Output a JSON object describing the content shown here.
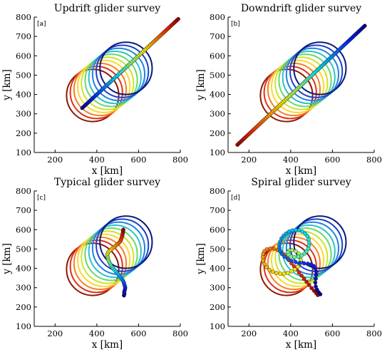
{
  "chart_data": [
    {
      "type": "scatter",
      "panel_label": "[a]",
      "title": "Updrift glider survey",
      "xlabel": "x [km]",
      "ylabel": "y [km]",
      "xlim": [
        100,
        800
      ],
      "ylim": [
        100,
        800
      ],
      "xticks": [
        200,
        400,
        600,
        800
      ],
      "yticks": [
        100,
        200,
        300,
        400,
        500,
        600,
        700,
        800
      ],
      "grid": false,
      "eddy_ellipses": {
        "count": 10,
        "center_start": [
          380,
          395
        ],
        "center_end": [
          540,
          535
        ],
        "semi_axes_km": [
          125,
          135
        ],
        "colormap": [
          "#8B1A00",
          "#E0301E",
          "#F58220",
          "#FFD52E",
          "#C8E52C",
          "#6ED56A",
          "#2CC2C8",
          "#1E82E0",
          "#1F3FD0",
          "#0A1A7A"
        ]
      },
      "glider_track": {
        "start": [
          330,
          330
        ],
        "end": [
          790,
          790
        ],
        "n_points": 70,
        "color_from": "#00008F",
        "color_to": "#B00000"
      }
    },
    {
      "type": "scatter",
      "panel_label": "[b]",
      "title": "Downdrift glider survey",
      "xlabel": "x [km]",
      "ylabel": "y [km]",
      "xlim": [
        100,
        800
      ],
      "ylim": [
        100,
        800
      ],
      "xticks": [
        200,
        400,
        600,
        800
      ],
      "yticks": [
        100,
        200,
        300,
        400,
        500,
        600,
        700,
        800
      ],
      "grid": false,
      "eddy_ellipses": {
        "count": 10,
        "center_start": [
          380,
          395
        ],
        "center_end": [
          540,
          535
        ],
        "semi_axes_km": [
          125,
          135
        ],
        "colormap": [
          "#8B1A00",
          "#E0301E",
          "#F58220",
          "#FFD52E",
          "#C8E52C",
          "#6ED56A",
          "#2CC2C8",
          "#1E82E0",
          "#1F3FD0",
          "#0A1A7A"
        ]
      },
      "glider_track": {
        "start": [
          145,
          140
        ],
        "end": [
          755,
          755
        ],
        "n_points": 90,
        "color_from": "#B00000",
        "color_to": "#00008F"
      }
    },
    {
      "type": "scatter",
      "panel_label": "[c]",
      "title": "Typical glider survey",
      "xlabel": "x [km]",
      "ylabel": "y [km]",
      "xlim": [
        100,
        800
      ],
      "ylim": [
        100,
        800
      ],
      "xticks": [
        200,
        400,
        600,
        800
      ],
      "yticks": [
        100,
        200,
        300,
        400,
        500,
        600,
        700,
        800
      ],
      "grid": false,
      "eddy_ellipses": {
        "count": 10,
        "center_start": [
          380,
          395
        ],
        "center_end": [
          540,
          535
        ],
        "semi_axes_km": [
          125,
          135
        ],
        "colormap": [
          "#8B1A00",
          "#E0301E",
          "#F58220",
          "#FFD52E",
          "#C8E52C",
          "#6ED56A",
          "#2CC2C8",
          "#1E82E0",
          "#1F3FD0",
          "#0A1A7A"
        ]
      },
      "glider_track": {
        "points": [
          [
            530,
            260
          ],
          [
            532,
            268
          ],
          [
            531,
            276
          ],
          [
            533,
            284
          ],
          [
            535,
            292
          ],
          [
            536,
            300
          ],
          [
            534,
            308
          ],
          [
            532,
            316
          ],
          [
            530,
            324
          ],
          [
            527,
            332
          ],
          [
            523,
            340
          ],
          [
            518,
            348
          ],
          [
            512,
            356
          ],
          [
            506,
            364
          ],
          [
            500,
            372
          ],
          [
            494,
            380
          ],
          [
            488,
            388
          ],
          [
            481,
            396
          ],
          [
            475,
            404
          ],
          [
            469,
            412
          ],
          [
            465,
            420
          ],
          [
            461,
            428
          ],
          [
            458,
            436
          ],
          [
            455,
            444
          ],
          [
            453,
            452
          ],
          [
            451,
            460
          ],
          [
            450,
            468
          ],
          [
            452,
            476
          ],
          [
            455,
            484
          ],
          [
            460,
            490
          ],
          [
            467,
            496
          ],
          [
            474,
            502
          ],
          [
            481,
            508
          ],
          [
            488,
            514
          ],
          [
            494,
            520
          ],
          [
            500,
            526
          ],
          [
            506,
            532
          ],
          [
            511,
            538
          ],
          [
            515,
            546
          ],
          [
            518,
            554
          ],
          [
            520,
            562
          ],
          [
            522,
            570
          ],
          [
            524,
            578
          ],
          [
            525,
            586
          ],
          [
            526,
            594
          ],
          [
            527,
            600
          ]
        ],
        "color_from": "#00008F",
        "color_to": "#B00000"
      }
    },
    {
      "type": "scatter",
      "panel_label": "[d]",
      "title": "Spiral glider survey",
      "xlabel": "x [km]",
      "ylabel": "y [km]",
      "xlim": [
        100,
        800
      ],
      "ylim": [
        100,
        800
      ],
      "xticks": [
        200,
        400,
        600,
        800
      ],
      "yticks": [
        100,
        200,
        300,
        400,
        500,
        600,
        700,
        800
      ],
      "grid": false,
      "eddy_ellipses": {
        "count": 10,
        "center_start": [
          380,
          395
        ],
        "center_end": [
          540,
          535
        ],
        "semi_axes_km": [
          125,
          135
        ],
        "colormap": [
          "#8B1A00",
          "#E0301E",
          "#F58220",
          "#FFD52E",
          "#C8E52C",
          "#6ED56A",
          "#2CC2C8",
          "#1E82E0",
          "#1F3FD0",
          "#0A1A7A"
        ]
      },
      "glider_track": {
        "points": [
          [
            530,
            262
          ],
          [
            522,
            272
          ],
          [
            512,
            284
          ],
          [
            500,
            298
          ],
          [
            488,
            314
          ],
          [
            476,
            330
          ],
          [
            464,
            346
          ],
          [
            452,
            362
          ],
          [
            440,
            378
          ],
          [
            428,
            394
          ],
          [
            416,
            410
          ],
          [
            404,
            426
          ],
          [
            392,
            442
          ],
          [
            380,
            458
          ],
          [
            368,
            472
          ],
          [
            354,
            484
          ],
          [
            338,
            494
          ],
          [
            320,
            500
          ],
          [
            302,
            502
          ],
          [
            286,
            498
          ],
          [
            274,
            488
          ],
          [
            268,
            474
          ],
          [
            266,
            458
          ],
          [
            268,
            440
          ],
          [
            274,
            422
          ],
          [
            284,
            406
          ],
          [
            298,
            392
          ],
          [
            314,
            382
          ],
          [
            332,
            376
          ],
          [
            350,
            372
          ],
          [
            368,
            372
          ],
          [
            386,
            376
          ],
          [
            404,
            384
          ],
          [
            420,
            394
          ],
          [
            434,
            408
          ],
          [
            444,
            424
          ],
          [
            448,
            442
          ],
          [
            446,
            460
          ],
          [
            438,
            476
          ],
          [
            424,
            488
          ],
          [
            406,
            494
          ],
          [
            392,
            492
          ],
          [
            386,
            482
          ],
          [
            390,
            470
          ],
          [
            402,
            462
          ],
          [
            418,
            458
          ],
          [
            436,
            460
          ],
          [
            452,
            466
          ],
          [
            466,
            476
          ],
          [
            476,
            488
          ],
          [
            484,
            502
          ],
          [
            488,
            518
          ],
          [
            488,
            534
          ],
          [
            486,
            550
          ],
          [
            480,
            566
          ],
          [
            470,
            580
          ],
          [
            456,
            590
          ],
          [
            440,
            596
          ],
          [
            424,
            598
          ],
          [
            408,
            596
          ],
          [
            392,
            590
          ],
          [
            378,
            580
          ],
          [
            366,
            568
          ],
          [
            356,
            554
          ],
          [
            350,
            538
          ],
          [
            346,
            522
          ],
          [
            346,
            506
          ],
          [
            350,
            490
          ],
          [
            358,
            474
          ],
          [
            370,
            460
          ],
          [
            386,
            448
          ],
          [
            404,
            438
          ],
          [
            424,
            432
          ],
          [
            444,
            428
          ],
          [
            464,
            426
          ],
          [
            482,
            424
          ],
          [
            498,
            420
          ],
          [
            510,
            412
          ],
          [
            518,
            400
          ],
          [
            522,
            384
          ],
          [
            522,
            366
          ],
          [
            520,
            346
          ],
          [
            518,
            326
          ],
          [
            520,
            306
          ],
          [
            526,
            290
          ],
          [
            534,
            276
          ],
          [
            542,
            266
          ]
        ],
        "color_from": "#B00000",
        "color_to": "#00008F"
      }
    }
  ]
}
